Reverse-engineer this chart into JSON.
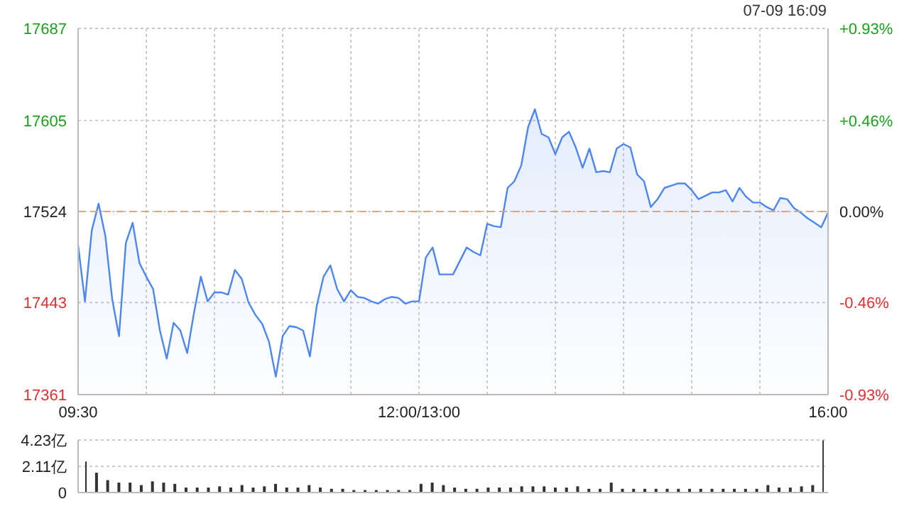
{
  "chart_data": [
    {
      "type": "area",
      "annotations": [
        "07-09 16:09"
      ],
      "categories": [
        "09:30",
        null,
        null,
        null,
        null,
        null,
        null,
        null,
        null,
        null,
        null,
        null,
        null,
        null,
        null,
        null,
        null,
        null,
        null,
        null,
        null,
        null,
        null,
        null,
        null,
        null,
        null,
        null,
        null,
        null,
        null,
        null,
        null,
        null,
        null,
        null,
        null,
        null,
        null,
        null,
        null,
        null,
        null,
        null,
        null,
        null,
        null,
        null,
        null,
        null,
        "12:00/13:00",
        null,
        null,
        null,
        null,
        null,
        null,
        null,
        null,
        null,
        null,
        null,
        null,
        null,
        null,
        null,
        null,
        null,
        null,
        null,
        null,
        null,
        null,
        null,
        null,
        null,
        null,
        null,
        null,
        null,
        null,
        null,
        null,
        null,
        null,
        null,
        null,
        null,
        null,
        null,
        null,
        null,
        null,
        null,
        null,
        null,
        null,
        null,
        null,
        null,
        null,
        null,
        null,
        null,
        null,
        null,
        null,
        null,
        null,
        null,
        "16:00"
      ],
      "series": [
        {
          "color": "#4d86f0",
          "values": [
            17494,
            17444,
            17507,
            17531,
            17502,
            17446,
            17413,
            17496,
            17514,
            17478,
            17466,
            17455,
            17418,
            17393,
            17425,
            17418,
            17398,
            17434,
            17466,
            17444,
            17452,
            17452,
            17450,
            17472,
            17464,
            17443,
            17432,
            17424,
            17408,
            17377,
            17413,
            17422,
            17421,
            17418,
            17395,
            17440,
            17466,
            17476,
            17455,
            17444,
            17454,
            17448,
            17447,
            17444,
            17442,
            17446,
            17448,
            17447,
            17442,
            17444,
            17444,
            17483,
            17492,
            17468,
            17468,
            17468,
            17480,
            17492,
            17488,
            17485,
            17513,
            17511,
            17510,
            17545,
            17551,
            17565,
            17599,
            17615,
            17593,
            17590,
            17575,
            17590,
            17595,
            17581,
            17563,
            17580,
            17559,
            17560,
            17559,
            17580,
            17584,
            17581,
            17557,
            17551,
            17528,
            17535,
            17545,
            17547,
            17549,
            17549,
            17543,
            17535,
            17538,
            17541,
            17541,
            17543,
            17533,
            17545,
            17537,
            17532,
            17532,
            17528,
            17525,
            17536,
            17535,
            17527,
            17523,
            17518,
            17514,
            17510,
            17523
          ]
        }
      ],
      "ylim": [
        17361,
        17687
      ],
      "yticks": [
        17361,
        17443,
        17524,
        17605,
        17687
      ],
      "y2lim": [
        -0.93,
        0.93
      ],
      "y2ticks": [
        {
          "value": -0.93,
          "label": "-0.93%"
        },
        {
          "value": -0.46,
          "label": "-0.46%"
        },
        {
          "value": 0,
          "label": "0.00%"
        },
        {
          "value": 0.46,
          "label": "+0.46%"
        },
        {
          "value": 0.93,
          "label": "+0.93%"
        }
      ],
      "ref_lines": [
        {
          "axis": "y",
          "value": 17524,
          "color": "#f0a070",
          "line_style": "dashed"
        }
      ],
      "grid": true
    },
    {
      "type": "bar",
      "categories": [
        null,
        null,
        null,
        null,
        null,
        null,
        null,
        null,
        null,
        null,
        null,
        null,
        null,
        null,
        null,
        null,
        null,
        null,
        null,
        null,
        null,
        null,
        null,
        null,
        null,
        null,
        null,
        null,
        null,
        null,
        null,
        null,
        null,
        null,
        null,
        null,
        null,
        null,
        null,
        null,
        null,
        null,
        null,
        null,
        null,
        null,
        null,
        null,
        null,
        null,
        null,
        null,
        null,
        null,
        null,
        null,
        null,
        null,
        null,
        null,
        null,
        null,
        null,
        null,
        null,
        null,
        null
      ],
      "series": [
        {
          "color": "#333333",
          "values": [
            2.5,
            1.6,
            1.0,
            0.8,
            0.8,
            0.6,
            0.9,
            0.8,
            0.7,
            0.4,
            0.4,
            0.4,
            0.5,
            0.4,
            0.6,
            0.4,
            0.5,
            0.7,
            0.4,
            0.4,
            0.6,
            0.4,
            0.3,
            0.3,
            0.2,
            0.2,
            0.2,
            0.2,
            0.2,
            0.2,
            0.7,
            0.8,
            0.6,
            0.4,
            0.3,
            0.3,
            0.4,
            0.4,
            0.4,
            0.5,
            0.5,
            0.5,
            0.4,
            0.4,
            0.5,
            0.3,
            0.3,
            0.8,
            0.3,
            0.3,
            0.3,
            0.3,
            0.3,
            0.3,
            0.3,
            0.3,
            0.3,
            0.3,
            0.3,
            0.3,
            0.3,
            0.6,
            0.4,
            0.4,
            0.5,
            0.6,
            4.2
          ]
        }
      ],
      "ylim": [
        0,
        4.23
      ],
      "yticks": [
        0,
        {
          "value": 2.11,
          "label": "2.11亿"
        },
        {
          "value": 4.23,
          "label": "4.23亿"
        }
      ],
      "tick_labels": "y",
      "grid": "y"
    }
  ]
}
